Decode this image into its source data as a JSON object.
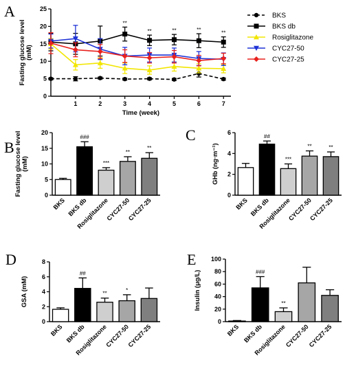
{
  "chart_data": [
    {
      "panel": "A",
      "type": "line",
      "xlabel": "Time (week)",
      "ylabel": "Fasting glucose level\n(mM)",
      "x": [
        0,
        1,
        2,
        3,
        4,
        5,
        6,
        7
      ],
      "xticks": [
        "1",
        "2",
        "3",
        "4",
        "5",
        "6",
        "7"
      ],
      "ylim": [
        0,
        25
      ],
      "yticks": [
        "0",
        "5",
        "10",
        "15",
        "20",
        "25"
      ],
      "legend_position": "right",
      "series": [
        {
          "name": "BKS",
          "color": "#000000",
          "marker": "circle",
          "dashed": true,
          "values": [
            5.0,
            5.0,
            5.2,
            4.9,
            5.0,
            4.8,
            6.5,
            4.9
          ],
          "errors": [
            0.3,
            0.6,
            0.3,
            0.3,
            0.3,
            0.3,
            1.0,
            0.3
          ]
        },
        {
          "name": "BKS db",
          "color": "#000000",
          "marker": "square",
          "dashed": false,
          "values": [
            15.5,
            15.0,
            15.8,
            17.8,
            16.0,
            16.2,
            15.9,
            15.5
          ],
          "errors": [
            2.5,
            3.0,
            4.3,
            2.0,
            1.5,
            1.5,
            2.0,
            1.5
          ]
        },
        {
          "name": "Rosiglitazone",
          "color": "#f2e600",
          "marker": "triangle-up",
          "dashed": false,
          "values": [
            15.0,
            9.0,
            9.5,
            8.0,
            7.5,
            8.5,
            8.0,
            7.9
          ],
          "errors": [
            1.5,
            1.5,
            1.5,
            1.5,
            1.2,
            1.3,
            1.3,
            1.2
          ]
        },
        {
          "name": "CYC27-50",
          "color": "#1f33d6",
          "marker": "triangle-down",
          "dashed": false,
          "values": [
            15.8,
            16.5,
            13.5,
            11.5,
            11.8,
            11.8,
            10.8,
            10.6
          ],
          "errors": [
            2.0,
            3.8,
            3.0,
            2.5,
            2.0,
            2.0,
            2.0,
            1.8
          ]
        },
        {
          "name": "CYC27-25",
          "color": "#e8211e",
          "marker": "diamond",
          "dashed": false,
          "values": [
            15.2,
            13.3,
            12.8,
            11.5,
            11.0,
            11.3,
            10.2,
            10.8
          ],
          "errors": [
            3.0,
            2.0,
            2.0,
            1.8,
            1.5,
            1.8,
            1.5,
            1.5
          ]
        }
      ],
      "annotations": [
        {
          "x": 3,
          "text": "**"
        },
        {
          "x": 4,
          "text": "**"
        },
        {
          "x": 5,
          "text": "**"
        },
        {
          "x": 6,
          "text": "**"
        },
        {
          "x": 7,
          "text": "**"
        }
      ]
    },
    {
      "panel": "B",
      "type": "bar",
      "categories": [
        "BKS",
        "BKS db",
        "Rosiglitazone",
        "CYC27-50",
        "CYC27-25"
      ],
      "values": [
        5.0,
        15.5,
        8.0,
        10.8,
        11.8
      ],
      "errors": [
        0.4,
        1.6,
        0.8,
        1.5,
        1.8
      ],
      "ylabel": "Fasting glucose level\n(mM)",
      "ylim": [
        0,
        20
      ],
      "yticks": [
        "0",
        "5",
        "10",
        "15",
        "20"
      ],
      "significance": [
        "",
        "###",
        "***",
        "**",
        "**"
      ]
    },
    {
      "panel": "C",
      "type": "bar",
      "categories": [
        "BKS",
        "BKS db",
        "Rosiglitazone",
        "CYC27-50",
        "CYC27-25"
      ],
      "values": [
        2.65,
        4.9,
        2.55,
        3.75,
        3.7
      ],
      "errors": [
        0.4,
        0.3,
        0.45,
        0.5,
        0.45
      ],
      "ylabel": "GHb (ng·m⁻¹)",
      "ylim": [
        0,
        6
      ],
      "yticks": [
        "0",
        "2",
        "4",
        "6"
      ],
      "significance": [
        "",
        "##",
        "***",
        "**",
        "**"
      ]
    },
    {
      "panel": "D",
      "type": "bar",
      "categories": [
        "BKS",
        "BKS db",
        "Rosiglitazone",
        "CYC27-50",
        "CYC27-25"
      ],
      "values": [
        1.65,
        4.45,
        2.6,
        2.8,
        3.1
      ],
      "errors": [
        0.2,
        1.4,
        0.55,
        0.8,
        1.4
      ],
      "ylabel": "GSA (mM)",
      "ylim": [
        0,
        8
      ],
      "yticks": [
        "0",
        "2",
        "4",
        "6",
        "8"
      ],
      "significance": [
        "",
        "##",
        "**",
        "*",
        ""
      ]
    },
    {
      "panel": "E",
      "type": "bar",
      "categories": [
        "BKS",
        "BKS db",
        "Rosiglitazone",
        "CYC27-50",
        "CYC27-25"
      ],
      "values": [
        1.0,
        54.0,
        16.0,
        62.0,
        42.0
      ],
      "errors": [
        0.8,
        18.0,
        6.0,
        25.0,
        9.0
      ],
      "ylabel": "Insulin (μg/L)",
      "ylim": [
        0,
        100
      ],
      "yticks": [
        "0",
        "20",
        "40",
        "60",
        "80",
        "100"
      ],
      "significance": [
        "",
        "###",
        "**",
        "",
        ""
      ]
    }
  ],
  "bar_colors": [
    "#ffffff",
    "#000000",
    "#cfcfcf",
    "#a6a6a6",
    "#7f7f7f"
  ]
}
